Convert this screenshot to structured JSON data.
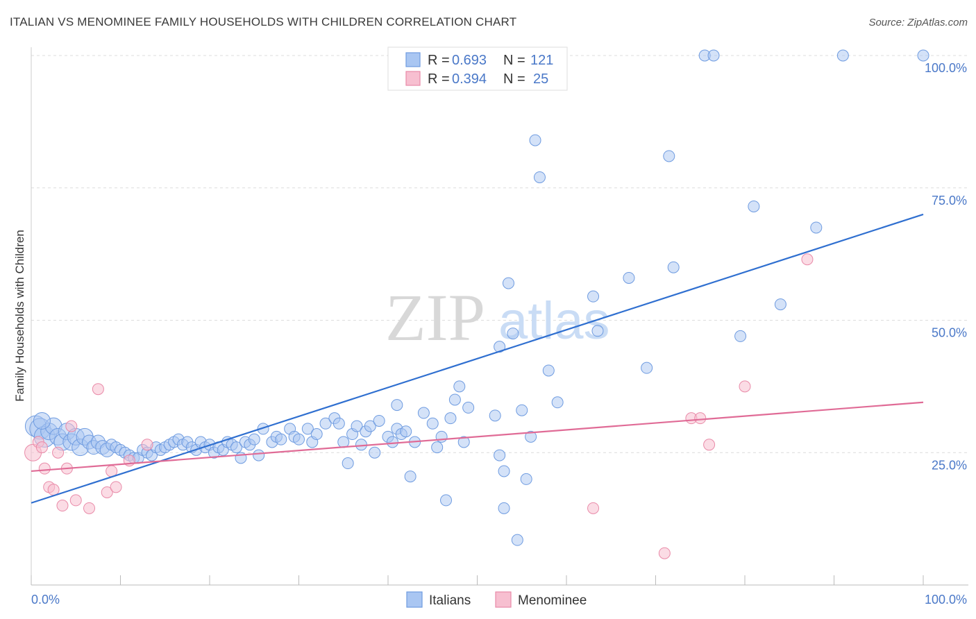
{
  "header": {
    "title": "ITALIAN VS MENOMINEE FAMILY HOUSEHOLDS WITH CHILDREN CORRELATION CHART",
    "source": "Source: ZipAtlas.com"
  },
  "watermark": {
    "zip": "ZIP",
    "atlas": "atlas"
  },
  "legend": {
    "italians": {
      "r_label": "R =",
      "r_value": "0.693",
      "n_label": "N =",
      "n_value": "121"
    },
    "menominee": {
      "r_label": "R =",
      "r_value": "0.394",
      "n_label": "N =",
      "n_value": "25"
    }
  },
  "colors": {
    "italians_fill": "#a9c6f2",
    "italians_stroke": "#6e9be0",
    "italians_line": "#2f6fd0",
    "menominee_fill": "#f7bfd0",
    "menominee_stroke": "#e98aa8",
    "menominee_line": "#e06b96",
    "value_text": "#4a78c8"
  },
  "chart_data": {
    "type": "scatter",
    "title": "ITALIAN VS MENOMINEE FAMILY HOUSEHOLDS WITH CHILDREN CORRELATION CHART",
    "xlabel": "",
    "ylabel": "Family Households with Children",
    "xlim": [
      0,
      100
    ],
    "ylim": [
      0,
      100
    ],
    "x_tick_labels": [
      "0.0%",
      "100.0%"
    ],
    "y_tick_labels": [
      "25.0%",
      "50.0%",
      "75.0%",
      "100.0%"
    ],
    "y_ticks": [
      25,
      50,
      75,
      100
    ],
    "grid": true,
    "legend_position": "top-center",
    "series": [
      {
        "name": "Italians",
        "r": 0.693,
        "n": 121,
        "trend": {
          "x": [
            0,
            100
          ],
          "y": [
            15.5,
            70
          ]
        },
        "points": [
          [
            0.5,
            30,
            3
          ],
          [
            1,
            29.5,
            3
          ],
          [
            1.5,
            28,
            3
          ],
          [
            2,
            29,
            2
          ],
          [
            2.5,
            30,
            2
          ],
          [
            3,
            28,
            2
          ],
          [
            3.5,
            27,
            2
          ],
          [
            4,
            29,
            2
          ],
          [
            4.5,
            27,
            2
          ],
          [
            5,
            28,
            2
          ],
          [
            5.5,
            26,
            2
          ],
          [
            6,
            28,
            2
          ],
          [
            6.5,
            27,
            1.5
          ],
          [
            7,
            26,
            1.5
          ],
          [
            7.5,
            27,
            1.5
          ],
          [
            8,
            26,
            1.5
          ],
          [
            8.5,
            25.5,
            1.5
          ],
          [
            9,
            26.5,
            1
          ],
          [
            9.5,
            26,
            1
          ],
          [
            10,
            25.5,
            1
          ],
          [
            10.5,
            25,
            1
          ],
          [
            11,
            24.5,
            1
          ],
          [
            11.5,
            24,
            1
          ],
          [
            12,
            24,
            1
          ],
          [
            12.5,
            25.5,
            1
          ],
          [
            13,
            25,
            1
          ],
          [
            13.5,
            24.5,
            1
          ],
          [
            14,
            26,
            1
          ],
          [
            14.5,
            25.5,
            1
          ],
          [
            15,
            26,
            1
          ],
          [
            15.5,
            26.5,
            1
          ],
          [
            16,
            27,
            1
          ],
          [
            16.5,
            27.5,
            1
          ],
          [
            17,
            26.5,
            1
          ],
          [
            17.5,
            27,
            1
          ],
          [
            18,
            26,
            1
          ],
          [
            18.5,
            25.5,
            1
          ],
          [
            19,
            27,
            1
          ],
          [
            19.5,
            26,
            1
          ],
          [
            20,
            26.5,
            1
          ],
          [
            20.5,
            25,
            1
          ],
          [
            21,
            26,
            1
          ],
          [
            21.5,
            25.5,
            1
          ],
          [
            22,
            27,
            1
          ],
          [
            22.5,
            26.5,
            1
          ],
          [
            23,
            26,
            1
          ],
          [
            23.5,
            24,
            1
          ],
          [
            24,
            27,
            1
          ],
          [
            24.5,
            26.5,
            1
          ],
          [
            25,
            27.5,
            1
          ],
          [
            25.5,
            24.5,
            1
          ],
          [
            26,
            29.5,
            1
          ],
          [
            27,
            27,
            1
          ],
          [
            27.5,
            28,
            1
          ],
          [
            28,
            27.5,
            1
          ],
          [
            29,
            29.5,
            1
          ],
          [
            29.5,
            28,
            1
          ],
          [
            30,
            27.5,
            1
          ],
          [
            31,
            29.5,
            1
          ],
          [
            31.5,
            27,
            1
          ],
          [
            32,
            28.5,
            1
          ],
          [
            33,
            30.5,
            1
          ],
          [
            34,
            31.5,
            1
          ],
          [
            34.5,
            30.5,
            1
          ],
          [
            35,
            27,
            1
          ],
          [
            35.5,
            23,
            1
          ],
          [
            36,
            28.5,
            1
          ],
          [
            36.5,
            30,
            1
          ],
          [
            37,
            26.5,
            1
          ],
          [
            37.5,
            29,
            1
          ],
          [
            38,
            30,
            1
          ],
          [
            38.5,
            25,
            1
          ],
          [
            39,
            31,
            1
          ],
          [
            40,
            28,
            1
          ],
          [
            40.5,
            27,
            1
          ],
          [
            41,
            29.5,
            1
          ],
          [
            41.5,
            28.5,
            1
          ],
          [
            42,
            29,
            1
          ],
          [
            42.5,
            20.5,
            1
          ],
          [
            43,
            27,
            1
          ],
          [
            44,
            32.5,
            1
          ],
          [
            45,
            30.5,
            1
          ],
          [
            45.5,
            26,
            1
          ],
          [
            46,
            28,
            1
          ],
          [
            46.5,
            16,
            1
          ],
          [
            47,
            31.5,
            1
          ],
          [
            47.5,
            35,
            1
          ],
          [
            48,
            37.5,
            1
          ],
          [
            48.5,
            27,
            1
          ],
          [
            49,
            33.5,
            1
          ],
          [
            52,
            32,
            1
          ],
          [
            52.5,
            45,
            1
          ],
          [
            52.5,
            24.5,
            1
          ],
          [
            53,
            21.5,
            1
          ],
          [
            53.5,
            57,
            1
          ],
          [
            53,
            14.5,
            1
          ],
          [
            54.5,
            8.5,
            1
          ],
          [
            55,
            33,
            1
          ],
          [
            56,
            28,
            1
          ],
          [
            55.5,
            20,
            1
          ],
          [
            54,
            47.5,
            1
          ],
          [
            56.5,
            84,
            1
          ],
          [
            57,
            77,
            1
          ],
          [
            58,
            40.5,
            1
          ],
          [
            59,
            34.5,
            1
          ],
          [
            63,
            54.5,
            1
          ],
          [
            63.5,
            48,
            1
          ],
          [
            67,
            58,
            1
          ],
          [
            69,
            41,
            1
          ],
          [
            71.5,
            81,
            1
          ],
          [
            72,
            60,
            1
          ],
          [
            79.5,
            47,
            1
          ],
          [
            81,
            71.5,
            1
          ],
          [
            84,
            53,
            1
          ],
          [
            88,
            67.5,
            1
          ],
          [
            75.5,
            100,
            1
          ],
          [
            76.5,
            100,
            1
          ],
          [
            91,
            100,
            1
          ],
          [
            100,
            100,
            1
          ],
          [
            41,
            34,
            1
          ],
          [
            1.2,
            31,
            2
          ]
        ]
      },
      {
        "name": "Menominee",
        "r": 0.394,
        "n": 25,
        "trend": {
          "x": [
            0,
            100
          ],
          "y": [
            21.5,
            34.5
          ]
        },
        "points": [
          [
            0.2,
            25,
            2
          ],
          [
            0.8,
            27,
            1
          ],
          [
            1.2,
            26,
            1
          ],
          [
            1.5,
            22,
            1
          ],
          [
            2,
            18.5,
            1
          ],
          [
            2.5,
            18,
            1
          ],
          [
            3,
            25,
            1
          ],
          [
            3.5,
            15,
            1
          ],
          [
            4,
            22,
            1
          ],
          [
            4.5,
            30,
            1
          ],
          [
            5,
            16,
            1
          ],
          [
            6.5,
            14.5,
            1
          ],
          [
            7.5,
            37,
            1
          ],
          [
            8.5,
            17.5,
            1
          ],
          [
            9,
            21.5,
            1
          ],
          [
            9.5,
            18.5,
            1
          ],
          [
            11,
            23.5,
            1
          ],
          [
            13,
            26.5,
            1
          ],
          [
            63,
            14.5,
            1
          ],
          [
            71,
            6,
            1
          ],
          [
            74,
            31.5,
            1
          ],
          [
            75,
            31.5,
            1
          ],
          [
            76,
            26.5,
            1
          ],
          [
            80,
            37.5,
            1
          ],
          [
            87,
            61.5,
            1
          ]
        ]
      }
    ]
  }
}
